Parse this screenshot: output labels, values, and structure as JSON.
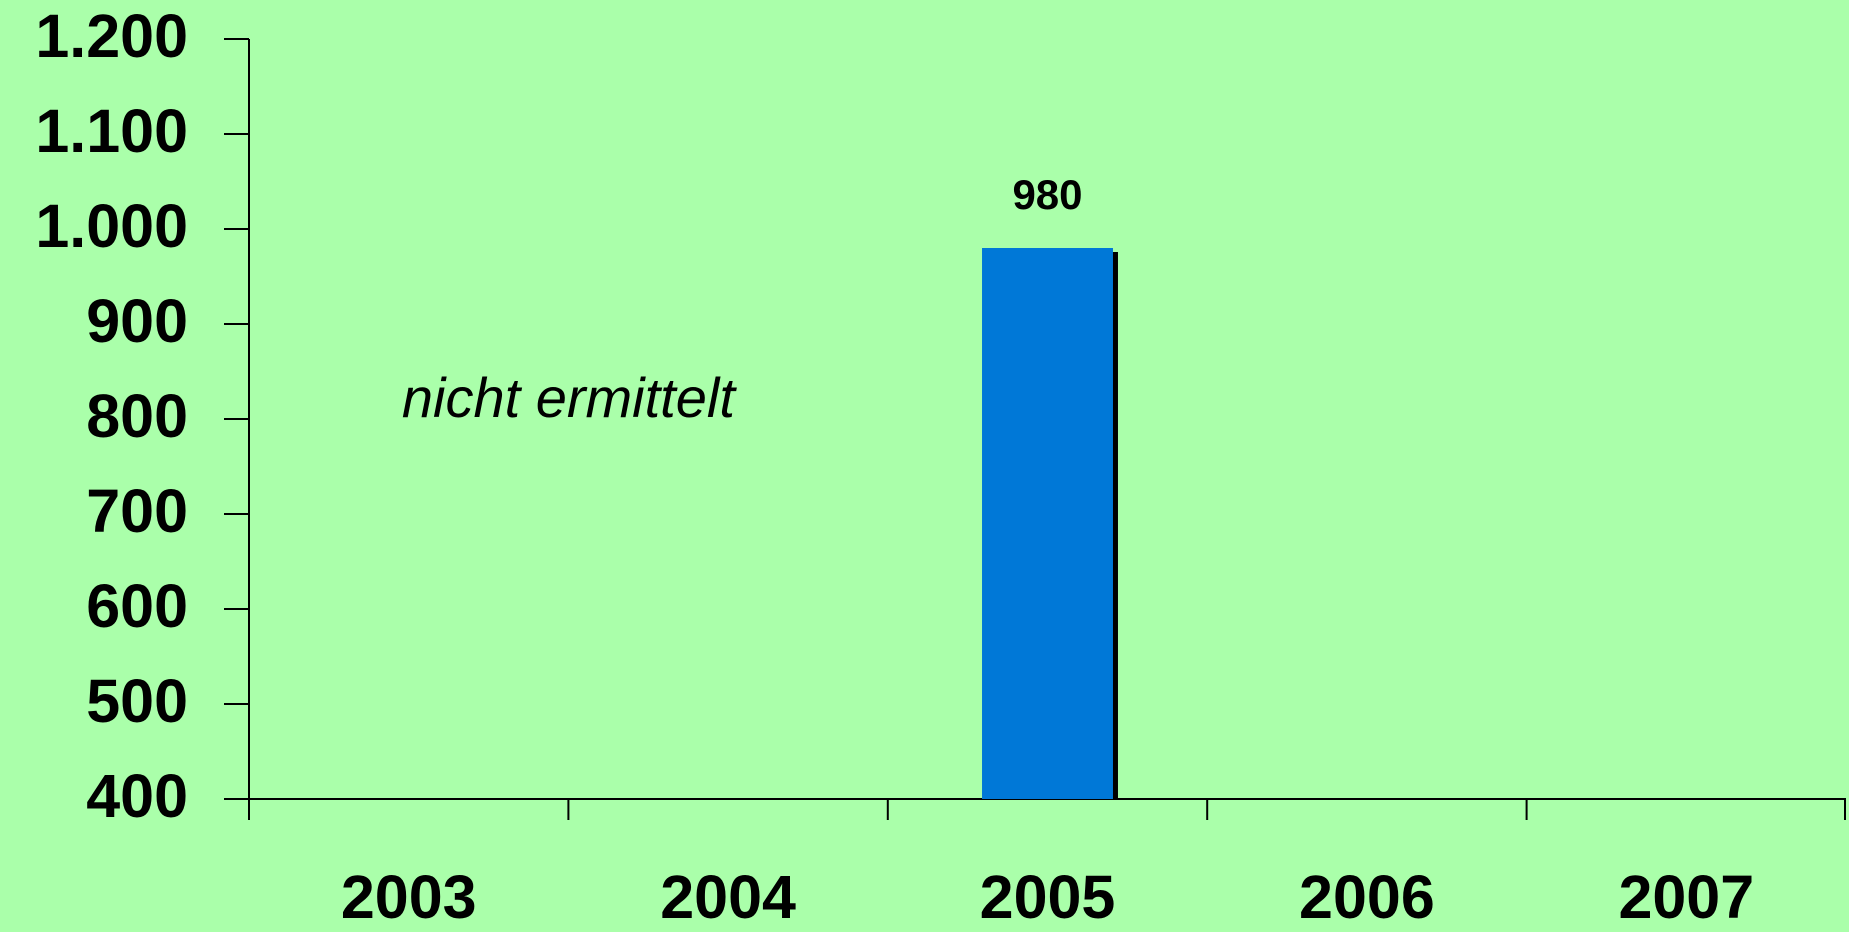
{
  "chart_data": {
    "type": "bar",
    "categories": [
      "2003",
      "2004",
      "2005",
      "2006",
      "2007"
    ],
    "values": [
      null,
      null,
      980,
      null,
      null
    ],
    "color": "#0078d7",
    "ylim": [
      400,
      1200
    ],
    "yticks": [
      400,
      500,
      600,
      700,
      800,
      900,
      {
        "value": 1000,
        "label": "1.000"
      },
      {
        "value": 1100,
        "label": "1.100"
      },
      {
        "value": 1200,
        "label": "1.200"
      }
    ],
    "annotation": "nicht ermittelt"
  }
}
